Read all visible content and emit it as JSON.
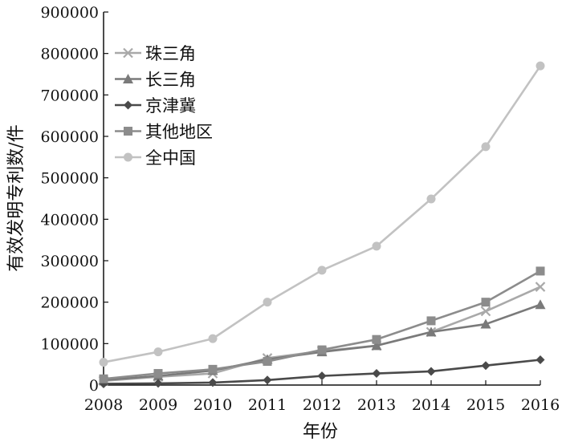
{
  "chart_data": {
    "type": "line",
    "title": "",
    "xlabel": "年份",
    "ylabel": "有效发明专利数/件",
    "x": [
      2008,
      2009,
      2010,
      2011,
      2012,
      2013,
      2014,
      2015,
      2016
    ],
    "xlim": [
      2008,
      2016
    ],
    "ylim": [
      0,
      900000
    ],
    "yticks": [
      0,
      100000,
      200000,
      300000,
      400000,
      500000,
      600000,
      700000,
      800000,
      900000
    ],
    "grid": false,
    "legend_position": "top-left",
    "series": [
      {
        "name": "珠三角",
        "marker": "x",
        "color": "#a9a9a9",
        "values": [
          10000,
          20000,
          28000,
          65000,
          82000,
          95000,
          128000,
          178000,
          237000
        ]
      },
      {
        "name": "长三角",
        "marker": "triangle",
        "color": "#7a7a7a",
        "values": [
          12000,
          22000,
          35000,
          62000,
          80000,
          95000,
          128000,
          147000,
          194000
        ]
      },
      {
        "name": "京津冀",
        "marker": "diamond",
        "color": "#4a4a4a",
        "values": [
          3000,
          4000,
          6000,
          12000,
          22000,
          28000,
          33000,
          47000,
          61000
        ]
      },
      {
        "name": "其他地区",
        "marker": "square",
        "color": "#8c8c8c",
        "values": [
          15000,
          28000,
          38000,
          57000,
          85000,
          110000,
          155000,
          200000,
          275000
        ]
      },
      {
        "name": "全中国",
        "marker": "circle",
        "color": "#c2c2c2",
        "values": [
          55000,
          80000,
          112000,
          200000,
          277000,
          335000,
          449000,
          575000,
          770000
        ]
      }
    ]
  }
}
